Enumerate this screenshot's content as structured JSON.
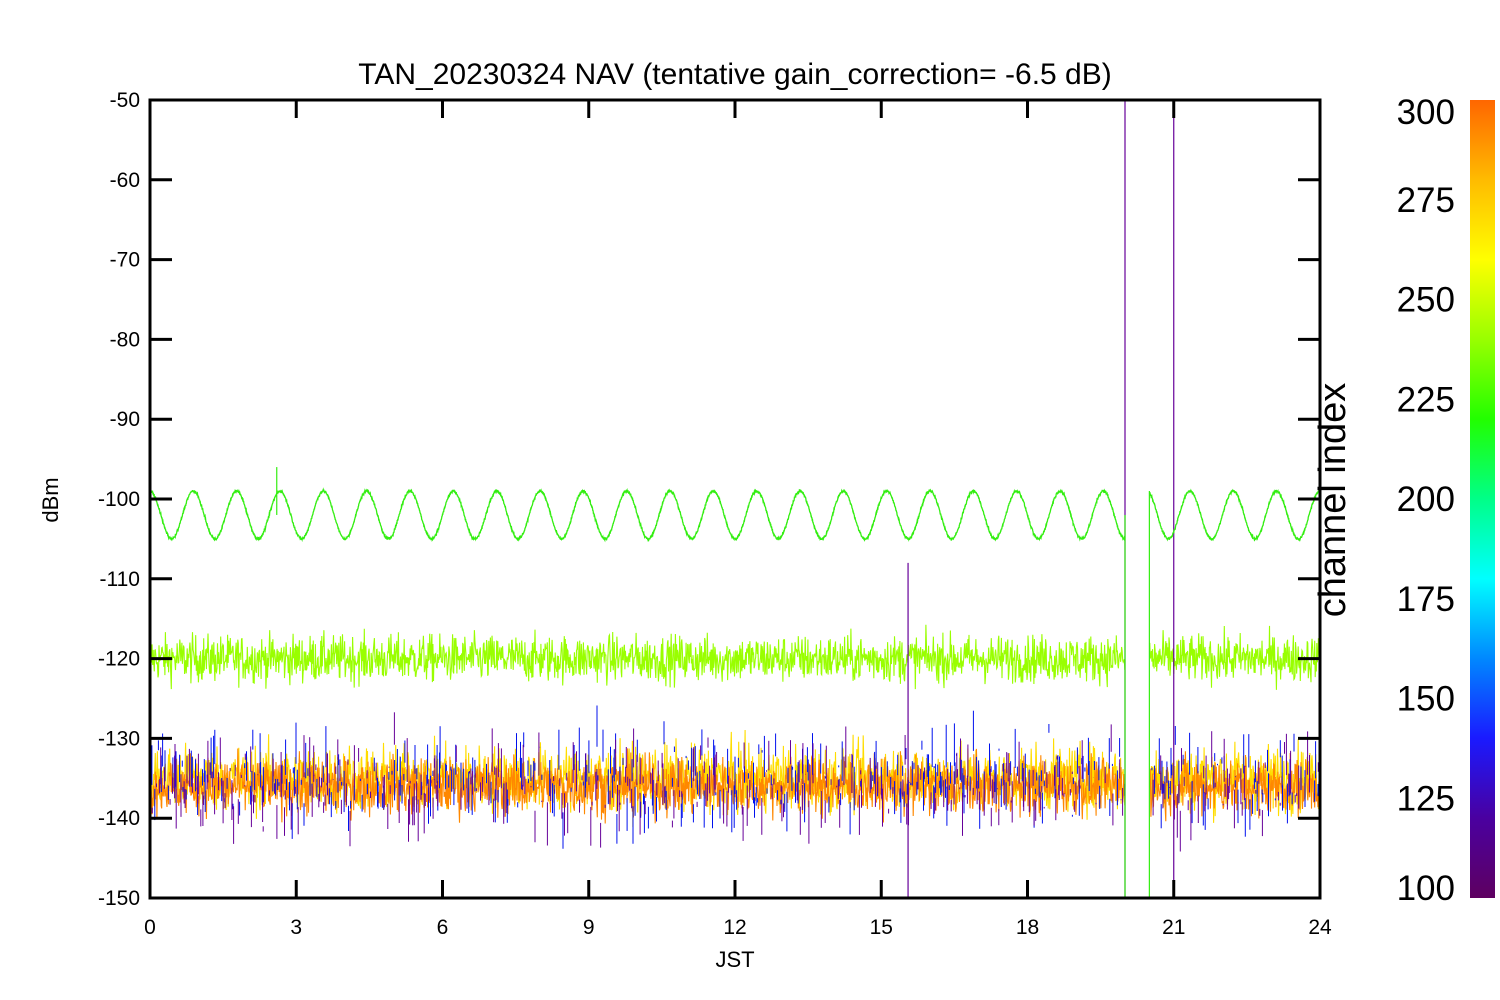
{
  "chart_data": {
    "type": "line",
    "title": "TAN_20230324 NAV (tentative gain_correction= -6.5 dB)",
    "xlabel": "JST",
    "ylabel": "dBm",
    "xlim": [
      0,
      24
    ],
    "ylim": [
      -150,
      -50
    ],
    "x_ticks": [
      0,
      3,
      6,
      9,
      12,
      15,
      18,
      21,
      24
    ],
    "y_ticks": [
      -50,
      -60,
      -70,
      -80,
      -90,
      -100,
      -110,
      -120,
      -130,
      -140,
      -150
    ],
    "grid": false,
    "data_gap_jst": [
      20.0,
      20.5
    ],
    "series": [
      {
        "channel_index": 250,
        "color": "#33ee11",
        "shape": "sinusoid",
        "center_dbm": -102,
        "amplitude_db": 3,
        "cycles_over_day": 27,
        "spike_points": [
          {
            "x": 2.6,
            "y": -96
          }
        ]
      },
      {
        "channel_index": 265,
        "color": "#99ff00",
        "shape": "noise band",
        "center_dbm": -120,
        "spread_db": 5
      },
      {
        "channel_index": 300,
        "color": "#ff8800",
        "shape": "noise band",
        "center_dbm": -136,
        "spread_db": 6
      },
      {
        "channel_index": 280,
        "color": "#ffdd00",
        "shape": "noise band",
        "center_dbm": -135,
        "spread_db": 7
      },
      {
        "channel_index": 130,
        "color": "#0011ee",
        "shape": "sparse spikes",
        "center_dbm": -135,
        "spread_db": 11
      },
      {
        "channel_index": 110,
        "color": "#660099",
        "shape": "sparse spikes",
        "center_dbm": -136,
        "spread_db": 11,
        "spike_points": [
          {
            "x": 15.55,
            "y": -108
          },
          {
            "x": 20.0,
            "y": -50
          },
          {
            "x": 21.0,
            "y": -50
          }
        ]
      }
    ],
    "colorbar": {
      "label": "channel index",
      "range": [
        100,
        300
      ],
      "ticks": [
        100,
        125,
        150,
        175,
        200,
        225,
        250,
        275,
        300
      ],
      "colormap": [
        "#5e0060",
        "#4a00a0",
        "#1a1aff",
        "#0088ff",
        "#00ffff",
        "#00ff88",
        "#22ff00",
        "#99ff00",
        "#ffff00",
        "#ffbb00",
        "#ff6600"
      ]
    }
  }
}
